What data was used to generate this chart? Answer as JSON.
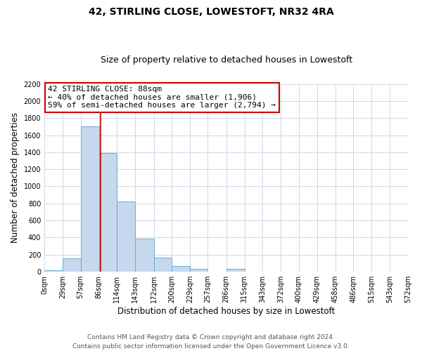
{
  "title": "42, STIRLING CLOSE, LOWESTOFT, NR32 4RA",
  "subtitle": "Size of property relative to detached houses in Lowestoft",
  "xlabel": "Distribution of detached houses by size in Lowestoft",
  "ylabel": "Number of detached properties",
  "bar_edges": [
    0,
    29,
    57,
    86,
    114,
    143,
    172,
    200,
    229,
    257,
    286,
    315,
    343,
    372,
    400,
    429,
    458,
    486,
    515,
    543,
    572
  ],
  "bar_heights": [
    15,
    155,
    1700,
    1390,
    825,
    385,
    165,
    65,
    30,
    0,
    30,
    0,
    0,
    0,
    0,
    0,
    0,
    0,
    0,
    0
  ],
  "bar_color": "#c5d8ee",
  "bar_edge_color": "#6aaad4",
  "vline_x": 88,
  "vline_color": "#cc0000",
  "ylim": [
    0,
    2200
  ],
  "yticks": [
    0,
    200,
    400,
    600,
    800,
    1000,
    1200,
    1400,
    1600,
    1800,
    2000,
    2200
  ],
  "xtick_labels": [
    "0sqm",
    "29sqm",
    "57sqm",
    "86sqm",
    "114sqm",
    "143sqm",
    "172sqm",
    "200sqm",
    "229sqm",
    "257sqm",
    "286sqm",
    "315sqm",
    "343sqm",
    "372sqm",
    "400sqm",
    "429sqm",
    "458sqm",
    "486sqm",
    "515sqm",
    "543sqm",
    "572sqm"
  ],
  "annotation_title": "42 STIRLING CLOSE: 88sqm",
  "annotation_line1": "← 40% of detached houses are smaller (1,906)",
  "annotation_line2": "59% of semi-detached houses are larger (2,794) →",
  "annotation_box_color": "#ffffff",
  "annotation_box_edge": "#cc0000",
  "footer_line1": "Contains HM Land Registry data © Crown copyright and database right 2024.",
  "footer_line2": "Contains public sector information licensed under the Open Government Licence v3.0.",
  "bg_color": "#ffffff",
  "grid_color": "#ccd9e8",
  "title_fontsize": 10,
  "subtitle_fontsize": 9,
  "axis_label_fontsize": 8.5,
  "tick_fontsize": 7,
  "footer_fontsize": 6.5,
  "annotation_fontsize": 8
}
